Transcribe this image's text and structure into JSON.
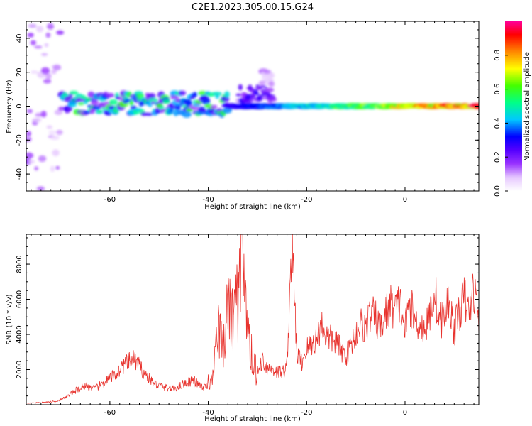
{
  "title": "C2E1.2023.305.00.15.G24",
  "colors": {
    "signal": "#e8322d",
    "background": "#ffffff",
    "axes": "#000000"
  },
  "chart_data": [
    {
      "type": "heatmap",
      "xlabel": "Height of straight line (km)",
      "ylabel": "Frequency (Hz)",
      "xlim": [
        -77,
        15
      ],
      "ylim": [
        -50,
        50
      ],
      "x_ticks": [
        -60,
        -40,
        -20,
        0
      ],
      "y_ticks": [
        -40,
        -20,
        0,
        20,
        40
      ],
      "colorbar": {
        "label": "Normalized spectral amplitude",
        "ticks": [
          0.0,
          0.2,
          0.4,
          0.6,
          0.8
        ],
        "range": [
          0,
          1
        ],
        "colormap": [
          "#ffffff",
          "#e6c8ff",
          "#9933ff",
          "#5500ff",
          "#0000ff",
          "#00c8ff",
          "#00ff88",
          "#44ff00",
          "#ffff00",
          "#ff8800",
          "#ff0000",
          "#ff0099"
        ]
      },
      "features": [
        {
          "x_range": [
            -77,
            -70
          ],
          "freq_range": [
            -50,
            50
          ],
          "amplitude": 0.1
        },
        {
          "x_range": [
            -70,
            -36
          ],
          "freq_range": [
            -5,
            8
          ],
          "amplitude": 0.4
        },
        {
          "x_range": [
            -34,
            -27
          ],
          "freq_range": [
            3,
            12
          ],
          "amplitude": 0.2
        },
        {
          "x_range": [
            -29,
            -27
          ],
          "freq_range": [
            13,
            22
          ],
          "amplitude": 0.1
        },
        {
          "x_range": [
            -36,
            15
          ],
          "freq_range": [
            -1,
            1
          ],
          "amplitude": 0.8
        }
      ]
    },
    {
      "type": "line",
      "xlabel": "Height of straight line (km)",
      "ylabel": "SNR (10 * v/v)",
      "xlim": [
        -77,
        15
      ],
      "ylim": [
        0,
        9700
      ],
      "x_ticks": [
        -60,
        -40,
        -20,
        0
      ],
      "y_ticks": [
        2000,
        4000,
        6000,
        8000
      ],
      "series": [
        {
          "x": [
            -77,
            -74,
            -71,
            -69,
            -67,
            -65,
            -63,
            -61,
            -59,
            -57,
            -55,
            -53,
            -51,
            -49,
            -47,
            -45,
            -43,
            -41,
            -39,
            -38,
            -37,
            -36,
            -35,
            -34,
            -33,
            -32,
            -31,
            -30,
            -29,
            -28,
            -27,
            -26,
            -25,
            -24,
            -23,
            -22,
            -21,
            -20,
            -19,
            -18,
            -17,
            -16,
            -15,
            -14,
            -13,
            -12,
            -11,
            -10,
            -9,
            -8,
            -7,
            -6,
            -5,
            -4,
            -3,
            -2,
            -1,
            0,
            1,
            2,
            3,
            4,
            5,
            6,
            7,
            8,
            9,
            10,
            11,
            12,
            13,
            14,
            15
          ],
          "y": [
            100,
            120,
            200,
            400,
            800,
            1100,
            900,
            1300,
            1700,
            2300,
            2600,
            1800,
            1200,
            1000,
            900,
            1200,
            1400,
            900,
            1500,
            4000,
            3200,
            5500,
            4500,
            6000,
            7800,
            3800,
            2500,
            1800,
            2600,
            2100,
            2000,
            1900,
            1800,
            2200,
            9500,
            2900,
            2400,
            3200,
            3400,
            3700,
            4600,
            3900,
            3700,
            3600,
            3100,
            2800,
            3400,
            4100,
            4600,
            4400,
            5200,
            4900,
            4300,
            5100,
            5700,
            5400,
            5800,
            4300,
            5800,
            4700,
            4700,
            4200,
            5100,
            6600,
            4700,
            5100,
            6000,
            4200,
            5300,
            6100,
            5200,
            6700,
            4800
          ]
        }
      ]
    }
  ]
}
